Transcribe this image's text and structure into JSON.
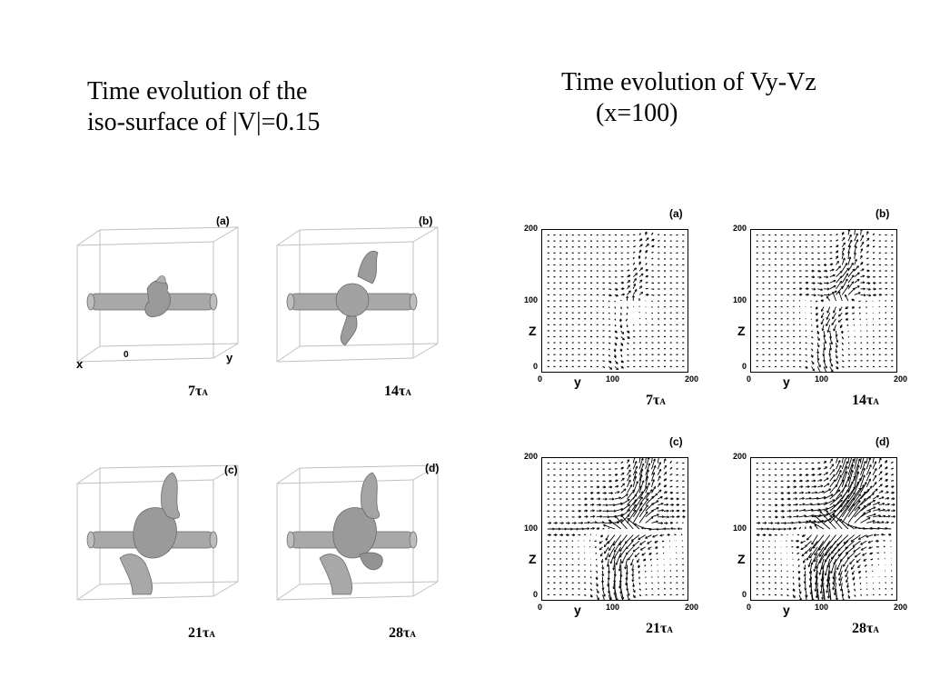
{
  "left_title": {
    "line1": "Time evolution of the",
    "line2": "iso-surface of |V|=0.15"
  },
  "right_title": {
    "line1": "Time evolution of Vy-Vz",
    "line2": "(x=100)"
  },
  "iso_panels": [
    {
      "label": "(a)",
      "time": "7",
      "tau": "τ",
      "sub": "A"
    },
    {
      "label": "(b)",
      "time": "14",
      "tau": "τ",
      "sub": "A"
    },
    {
      "label": "(c)",
      "time": "21",
      "tau": "τ",
      "sub": "A"
    },
    {
      "label": "(d)",
      "time": "28",
      "tau": "τ",
      "sub": "A"
    }
  ],
  "iso_axes": {
    "x": "x",
    "origin": "0",
    "y": "y"
  },
  "vector_panels": [
    {
      "label": "(a)",
      "time": "7",
      "tau": "τ",
      "sub": "A"
    },
    {
      "label": "(b)",
      "time": "14",
      "tau": "τ",
      "sub": "A"
    },
    {
      "label": "(c)",
      "time": "21",
      "tau": "τ",
      "sub": "A"
    },
    {
      "label": "(d)",
      "time": "28",
      "tau": "τ",
      "sub": "A"
    }
  ],
  "vector_axes": {
    "xlabel": "y",
    "ylabel": "Z",
    "xticks": [
      "0",
      "100",
      "200"
    ],
    "yticks": [
      "200",
      "100",
      "0"
    ]
  },
  "colors": {
    "surface": "#a8a8a8",
    "box": "#c0c0c0",
    "ink": "#000000"
  }
}
